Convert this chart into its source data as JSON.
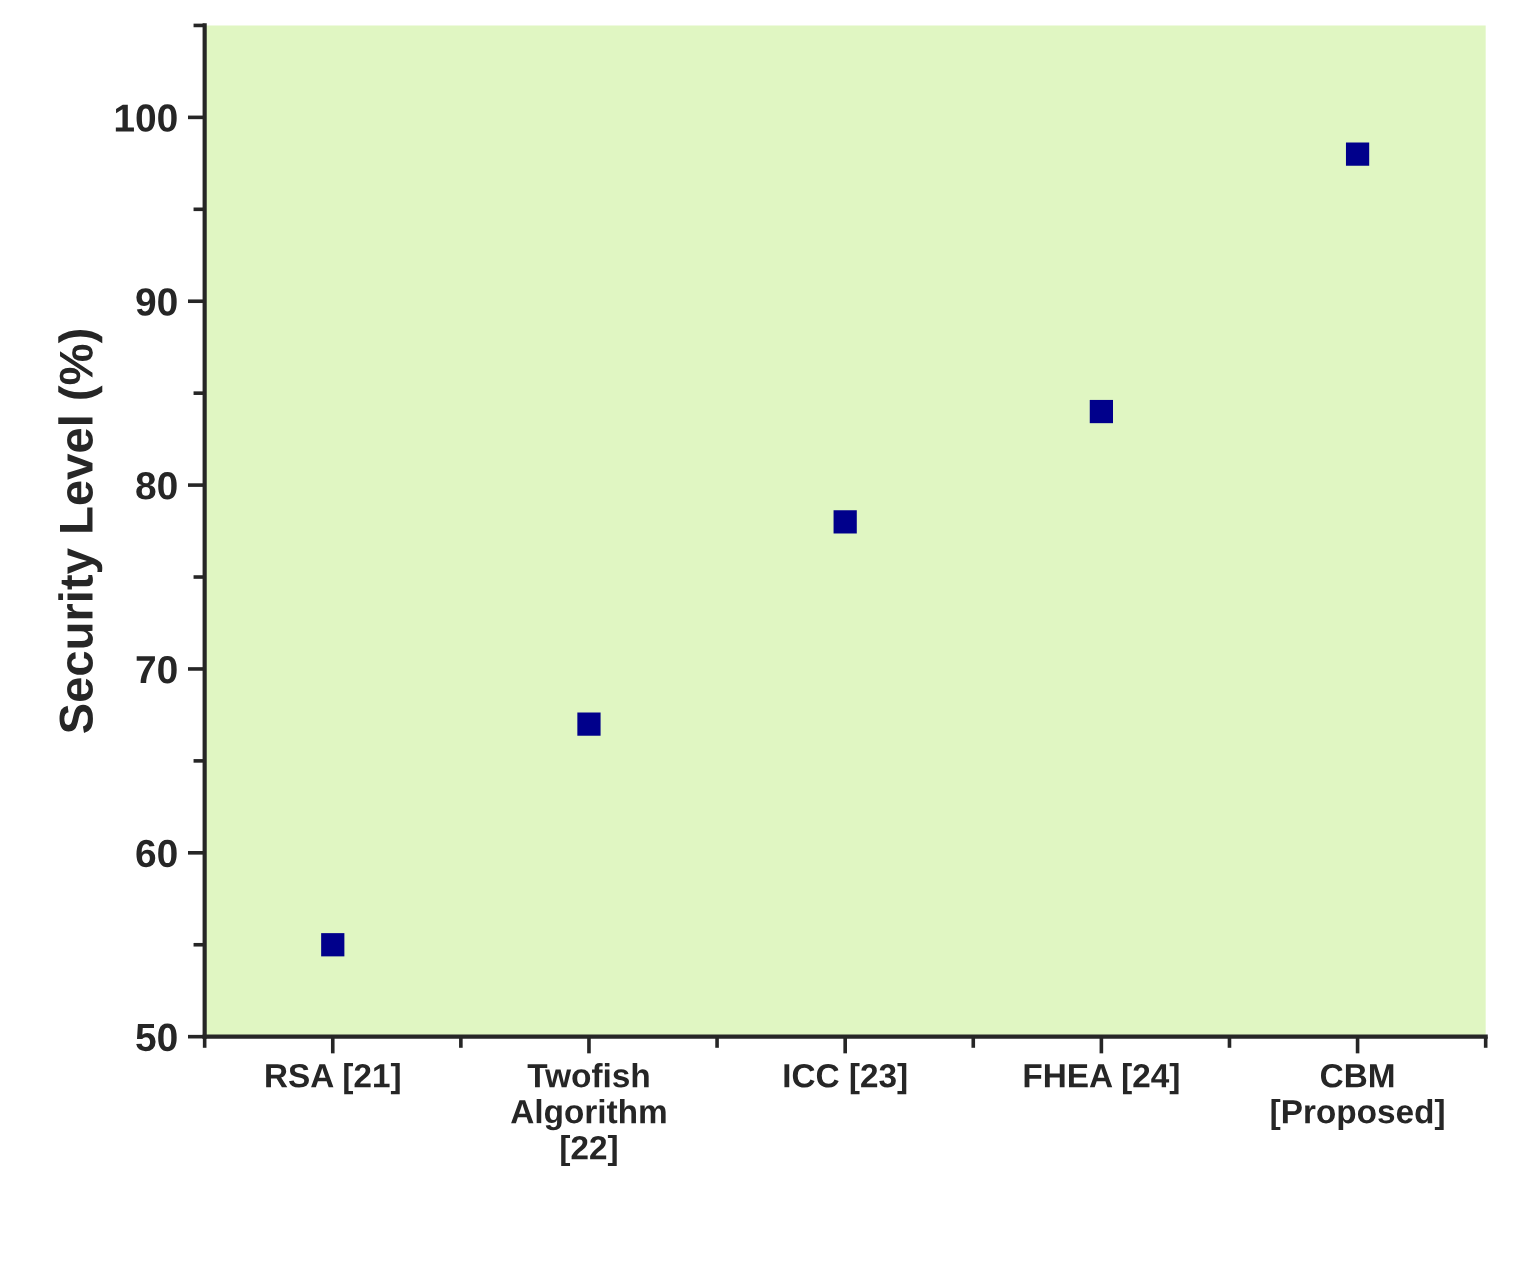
{
  "chart_data": {
    "type": "scatter",
    "ylabel": "Security Level (%)",
    "categories": [
      "RSA [21]",
      "Twofish\nAlgorithm\n[22]",
      "ICC [23]",
      "FHEA [24]",
      "CBM\n[Proposed]"
    ],
    "series": [
      {
        "color": "#00008b",
        "values": [
          55,
          67,
          78,
          84,
          98
        ]
      }
    ],
    "marker": "square",
    "ylim": [
      50,
      105
    ],
    "yticks": [
      50,
      60,
      70,
      80,
      90,
      100
    ],
    "grid": false,
    "legend": false
  }
}
